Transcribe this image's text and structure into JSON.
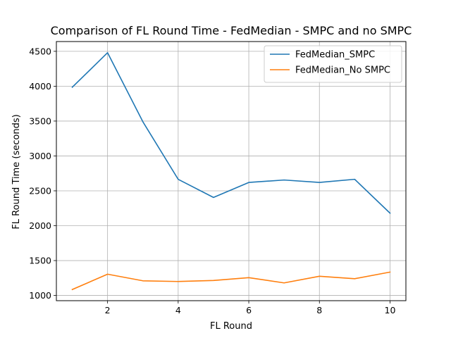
{
  "chart_data": {
    "type": "line",
    "title": "Comparison of FL Round Time - FedMedian - SMPC and no SMPC",
    "xlabel": "FL Round",
    "ylabel": "FL Round Time (seconds)",
    "x": [
      1,
      2,
      3,
      4,
      5,
      6,
      7,
      8,
      9,
      10
    ],
    "xlim": [
      0.55,
      10.45
    ],
    "ylim": [
      925,
      4640
    ],
    "xticks": [
      2,
      4,
      6,
      8,
      10
    ],
    "yticks": [
      1000,
      1500,
      2000,
      2500,
      3000,
      3500,
      4000,
      4500
    ],
    "grid": true,
    "legend_position": "upper right",
    "series": [
      {
        "name": "FedMedian_SMPC",
        "color": "#1f77b4",
        "values": [
          3985,
          4480,
          3490,
          2665,
          2405,
          2620,
          2655,
          2620,
          2665,
          2180
        ]
      },
      {
        "name": "FedMedian_No SMPC",
        "color": "#ff7f0e",
        "values": [
          1085,
          1305,
          1210,
          1200,
          1215,
          1255,
          1180,
          1275,
          1240,
          1335
        ]
      }
    ]
  }
}
